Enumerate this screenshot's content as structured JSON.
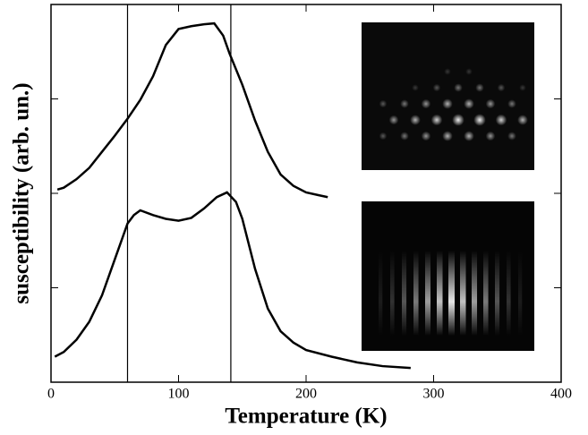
{
  "chart_data": {
    "type": "line",
    "x_label": "Temperature (K)",
    "y_label": "susceptibility  (arb.  un.)",
    "xlim": [
      0,
      400
    ],
    "xticks": [
      0,
      100,
      200,
      300,
      400
    ],
    "ylim": [
      0,
      4
    ],
    "yticks": [
      1,
      2,
      3
    ],
    "vlines": [
      60,
      141
    ],
    "series": [
      {
        "color": "#000000",
        "x": [
          5,
          10,
          20,
          30,
          40,
          50,
          60,
          70,
          80,
          90,
          100,
          110,
          120,
          128,
          135,
          140,
          150,
          160,
          170,
          180,
          190,
          200,
          210,
          217
        ],
        "values": [
          2.04,
          2.06,
          2.15,
          2.27,
          2.44,
          2.61,
          2.79,
          2.99,
          3.24,
          3.57,
          3.74,
          3.77,
          3.79,
          3.8,
          3.67,
          3.48,
          3.15,
          2.77,
          2.44,
          2.2,
          2.08,
          2.01,
          1.98,
          1.96
        ]
      },
      {
        "color": "#000000",
        "x": [
          3,
          10,
          20,
          30,
          40,
          50,
          60,
          65,
          70,
          80,
          90,
          100,
          110,
          120,
          130,
          138,
          145,
          150,
          160,
          170,
          180,
          190,
          200,
          220,
          240,
          260,
          282
        ],
        "values": [
          0.27,
          0.32,
          0.45,
          0.64,
          0.92,
          1.3,
          1.68,
          1.77,
          1.82,
          1.77,
          1.73,
          1.71,
          1.74,
          1.84,
          1.96,
          2.01,
          1.91,
          1.73,
          1.2,
          0.78,
          0.54,
          0.42,
          0.34,
          0.27,
          0.21,
          0.17,
          0.15
        ]
      }
    ]
  }
}
